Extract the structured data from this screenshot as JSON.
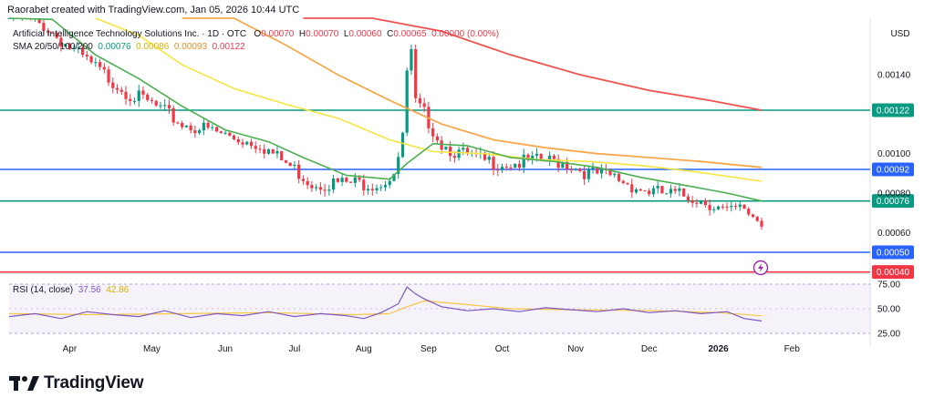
{
  "header": {
    "created_by": "Raorabet created with TradingView.com, Jan 05, 2026 10:44 UTC"
  },
  "symbol": {
    "name": "Artificial Intelligence Technology Solutions Inc. · 1D · OTC",
    "o_label": "O",
    "o": "0.00070",
    "h_label": "H",
    "h": "0.00070",
    "l_label": "L",
    "l": "0.00060",
    "c_label": "C",
    "c": "0.00065",
    "change": "0.00000 (0.00%)"
  },
  "sma": {
    "label": "SMA 20/50/100/200",
    "v20": "0.00076",
    "v50": "0.00086",
    "v100": "0.00093",
    "v200": "0.00122"
  },
  "currency": "USD",
  "rsi": {
    "label": "RSI (14, close)",
    "value": "37.56",
    "ma": "42.86",
    "ticks": [
      "75.00",
      "50.00",
      "25.00"
    ]
  },
  "brand": {
    "name": "TradingView"
  },
  "icons": {
    "alert": "lightning-alert-icon",
    "logo": "tradingview-logo-icon"
  },
  "colors": {
    "up": "#089981",
    "down": "#f23645",
    "sma20": "#4caf50",
    "sma50": "#f5e642",
    "sma100": "#f7a84a",
    "sma200": "#ef5350",
    "level_green": "#089981",
    "level_blue": "#2962ff",
    "level_red": "#f23645",
    "rsi": "#7e57c2",
    "rsi_ma": "#f5c842"
  },
  "chart_data": {
    "type": "candlestick",
    "price_axis": {
      "ticks": [
        "0.00140",
        "0.00100",
        "0.00080",
        "0.00060"
      ]
    },
    "x_ticks": [
      "Apr",
      "May",
      "Jun",
      "Jul",
      "Aug",
      "Sep",
      "Oct",
      "Nov",
      "Dec",
      "2026",
      "Feb"
    ],
    "levels": [
      {
        "price": "0.00122",
        "color": "#089981"
      },
      {
        "price": "0.00092",
        "color": "#2962ff"
      },
      {
        "price": "0.00076",
        "color": "#089981"
      },
      {
        "price": "0.00050",
        "color": "#2962ff"
      },
      {
        "price": "0.00040",
        "color": "#f23645"
      }
    ],
    "close_path": [
      [
        0,
        0.0017
      ],
      [
        8,
        0.00165
      ],
      [
        16,
        0.0015
      ],
      [
        22,
        0.0014
      ],
      [
        28,
        0.0013
      ],
      [
        33,
        0.00125
      ],
      [
        40,
        0.00115
      ],
      [
        46,
        0.00112
      ],
      [
        52,
        0.00108
      ],
      [
        58,
        0.00105
      ],
      [
        62,
        0.00098
      ],
      [
        66,
        0.00092
      ],
      [
        70,
        0.00085
      ],
      [
        74,
        0.00085
      ],
      [
        78,
        0.00085
      ],
      [
        82,
        0.00085
      ],
      [
        86,
        0.00085
      ],
      [
        89,
        0.0009
      ],
      [
        90,
        0.00095
      ],
      [
        91,
        0.0011
      ],
      [
        92,
        0.0014
      ],
      [
        93,
        0.0015
      ],
      [
        94,
        0.00125
      ],
      [
        96,
        0.0012
      ],
      [
        100,
        0.00105
      ],
      [
        104,
        0.001
      ],
      [
        110,
        0.00096
      ],
      [
        116,
        0.00095
      ],
      [
        122,
        0.00096
      ],
      [
        128,
        0.00096
      ],
      [
        134,
        0.0009
      ],
      [
        140,
        0.00088
      ],
      [
        146,
        0.00082
      ],
      [
        150,
        0.0008
      ],
      [
        154,
        0.00079
      ],
      [
        158,
        0.00078
      ],
      [
        162,
        0.00075
      ],
      [
        166,
        0.0007
      ],
      [
        170,
        0.00072
      ],
      [
        174,
        0.00065
      ]
    ],
    "sma20": [
      [
        0,
        0.00178
      ],
      [
        10,
        0.00168
      ],
      [
        20,
        0.0015
      ],
      [
        30,
        0.00138
      ],
      [
        40,
        0.00124
      ],
      [
        50,
        0.00112
      ],
      [
        60,
        0.00106
      ],
      [
        68,
        0.00098
      ],
      [
        78,
        0.00089
      ],
      [
        88,
        0.00087
      ],
      [
        92,
        0.00095
      ],
      [
        98,
        0.00105
      ],
      [
        106,
        0.00104
      ],
      [
        116,
        0.00098
      ],
      [
        126,
        0.00096
      ],
      [
        136,
        0.00093
      ],
      [
        146,
        0.00088
      ],
      [
        156,
        0.00084
      ],
      [
        166,
        0.0008
      ],
      [
        174,
        0.00076
      ]
    ],
    "sma50": [
      [
        20,
        0.00175
      ],
      [
        30,
        0.0016
      ],
      [
        40,
        0.00145
      ],
      [
        52,
        0.00133
      ],
      [
        64,
        0.00125
      ],
      [
        76,
        0.00118
      ],
      [
        88,
        0.00107
      ],
      [
        98,
        0.00101
      ],
      [
        110,
        0.001
      ],
      [
        122,
        0.00097
      ],
      [
        134,
        0.00096
      ],
      [
        146,
        0.00094
      ],
      [
        158,
        0.00091
      ],
      [
        174,
        0.00086
      ]
    ],
    "sma100": [
      [
        40,
        0.00188
      ],
      [
        52,
        0.00172
      ],
      [
        64,
        0.00155
      ],
      [
        76,
        0.0014
      ],
      [
        88,
        0.00127
      ],
      [
        100,
        0.00115
      ],
      [
        112,
        0.00107
      ],
      [
        124,
        0.00103
      ],
      [
        136,
        0.001
      ],
      [
        148,
        0.00098
      ],
      [
        160,
        0.00096
      ],
      [
        174,
        0.00093
      ]
    ],
    "sma200": [
      [
        68,
        0.0019
      ],
      [
        84,
        0.00175
      ],
      [
        100,
        0.00162
      ],
      [
        116,
        0.0015
      ],
      [
        132,
        0.0014
      ],
      [
        148,
        0.00132
      ],
      [
        162,
        0.00127
      ],
      [
        174,
        0.00122
      ]
    ],
    "rsi": [
      [
        0,
        42
      ],
      [
        6,
        45
      ],
      [
        12,
        40
      ],
      [
        18,
        47
      ],
      [
        24,
        44
      ],
      [
        30,
        42
      ],
      [
        36,
        48
      ],
      [
        42,
        41
      ],
      [
        48,
        45
      ],
      [
        54,
        43
      ],
      [
        60,
        47
      ],
      [
        66,
        42
      ],
      [
        72,
        45
      ],
      [
        78,
        43
      ],
      [
        82,
        40
      ],
      [
        86,
        46
      ],
      [
        90,
        55
      ],
      [
        92,
        72
      ],
      [
        94,
        65
      ],
      [
        96,
        60
      ],
      [
        100,
        52
      ],
      [
        106,
        48
      ],
      [
        112,
        50
      ],
      [
        118,
        47
      ],
      [
        124,
        51
      ],
      [
        130,
        49
      ],
      [
        136,
        47
      ],
      [
        142,
        50
      ],
      [
        148,
        46
      ],
      [
        154,
        48
      ],
      [
        160,
        45
      ],
      [
        166,
        47
      ],
      [
        170,
        40
      ],
      [
        174,
        37.56
      ]
    ],
    "rsi_ma": [
      [
        0,
        45
      ],
      [
        20,
        44
      ],
      [
        40,
        45
      ],
      [
        60,
        46
      ],
      [
        80,
        44
      ],
      [
        88,
        45
      ],
      [
        92,
        52
      ],
      [
        96,
        58
      ],
      [
        104,
        55
      ],
      [
        116,
        50
      ],
      [
        130,
        49
      ],
      [
        150,
        48
      ],
      [
        164,
        46
      ],
      [
        174,
        42.86
      ]
    ]
  }
}
